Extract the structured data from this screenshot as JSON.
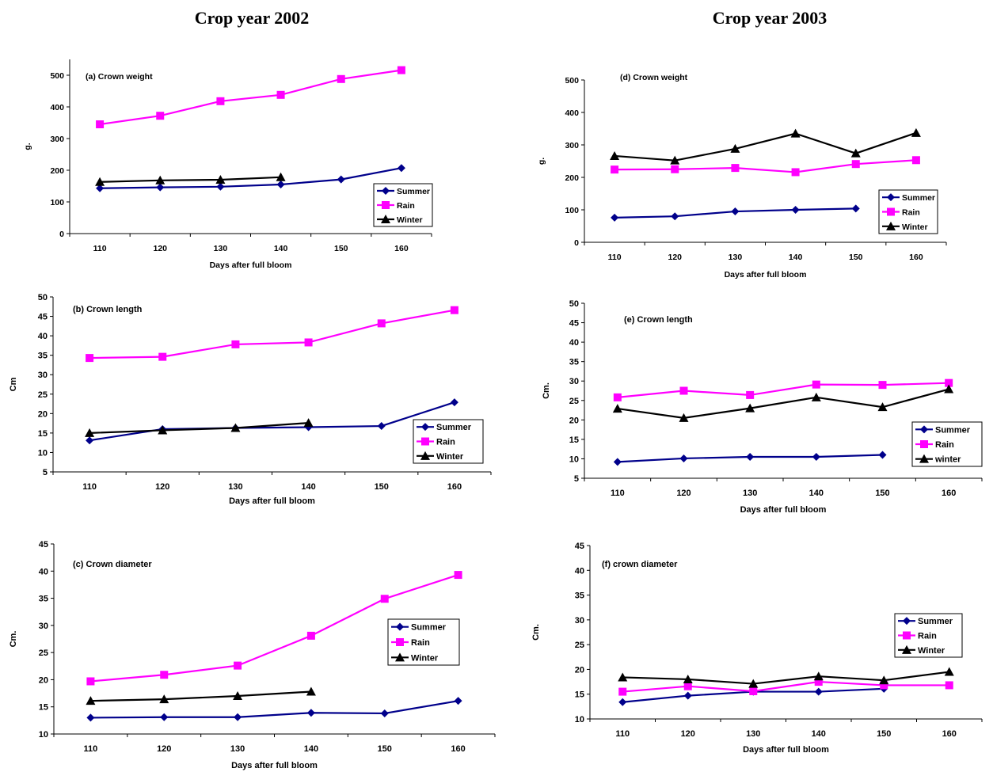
{
  "page": {
    "left_title": "Crop year 2002",
    "right_title": "Crop year 2003"
  },
  "chart_data": [
    {
      "type": "line",
      "panel": "a",
      "title": "(a) Crown weight",
      "xlabel": "Days after full bloom",
      "ylabel": "g.",
      "categories": [
        110,
        120,
        130,
        140,
        150,
        160
      ],
      "ylim": [
        0,
        550
      ],
      "yticks": [
        0,
        100,
        200,
        300,
        400,
        500
      ],
      "legend_position": "bottom-right",
      "series": [
        {
          "name": "Summer",
          "color": "#00008B",
          "marker": "diamond",
          "values": [
            143,
            146,
            148,
            155,
            171,
            207
          ]
        },
        {
          "name": "Rain",
          "color": "#FF00FF",
          "marker": "square",
          "values": [
            345,
            372,
            418,
            438,
            488,
            516
          ]
        },
        {
          "name": "Winter",
          "color": "#000000",
          "marker": "triangle",
          "values": [
            163,
            168,
            170,
            178,
            null,
            null
          ]
        }
      ]
    },
    {
      "type": "line",
      "panel": "b",
      "title": "(b) Crown length",
      "xlabel": "Days after full bloom",
      "ylabel": "Cm",
      "categories": [
        110,
        120,
        130,
        140,
        150,
        160
      ],
      "ylim": [
        5,
        50
      ],
      "yticks": [
        5,
        10,
        15,
        20,
        25,
        30,
        35,
        40,
        45,
        50
      ],
      "legend_position": "bottom-right",
      "series": [
        {
          "name": "Summer",
          "color": "#00008B",
          "marker": "diamond",
          "values": [
            13.1,
            16.0,
            16.3,
            16.5,
            16.8,
            22.9
          ]
        },
        {
          "name": "Rain",
          "color": "#FF00FF",
          "marker": "square",
          "values": [
            34.3,
            34.6,
            37.8,
            38.3,
            43.2,
            46.6
          ]
        },
        {
          "name": "Winter",
          "color": "#000000",
          "marker": "triangle",
          "values": [
            15.0,
            15.7,
            16.3,
            17.6,
            null,
            null
          ]
        }
      ]
    },
    {
      "type": "line",
      "panel": "c",
      "title": "(c) Crown diameter",
      "xlabel": "Days after full bloom",
      "ylabel": "Cm.",
      "categories": [
        110,
        120,
        130,
        140,
        150,
        160
      ],
      "ylim": [
        10,
        45
      ],
      "yticks": [
        10,
        15,
        20,
        25,
        30,
        35,
        40,
        45
      ],
      "legend_position": "right",
      "series": [
        {
          "name": "Summer",
          "color": "#00008B",
          "marker": "diamond",
          "values": [
            13.0,
            13.1,
            13.1,
            13.9,
            13.8,
            16.1
          ]
        },
        {
          "name": "Rain",
          "color": "#FF00FF",
          "marker": "square",
          "values": [
            19.7,
            20.9,
            22.6,
            28.1,
            34.9,
            39.3
          ]
        },
        {
          "name": "Winter",
          "color": "#000000",
          "marker": "triangle",
          "values": [
            16.1,
            16.4,
            17.0,
            17.8,
            null,
            null
          ]
        }
      ]
    },
    {
      "type": "line",
      "panel": "d",
      "title": "(d) Crown weight",
      "xlabel": "Days after full bloom",
      "ylabel": "g.",
      "categories": [
        110,
        120,
        130,
        140,
        150,
        160
      ],
      "ylim": [
        0,
        500
      ],
      "yticks": [
        0,
        100,
        200,
        300,
        400,
        500
      ],
      "legend_position": "bottom-right",
      "series": [
        {
          "name": "Summer",
          "color": "#00008B",
          "marker": "diamond",
          "values": [
            76,
            80,
            95,
            100,
            104,
            null
          ]
        },
        {
          "name": "Rain",
          "color": "#FF00FF",
          "marker": "square",
          "values": [
            224,
            225,
            229,
            216,
            241,
            253
          ]
        },
        {
          "name": "Winter",
          "color": "#000000",
          "marker": "triangle",
          "values": [
            266,
            252,
            288,
            335,
            274,
            337
          ]
        }
      ]
    },
    {
      "type": "line",
      "panel": "e",
      "title": "(e) Crown length",
      "xlabel": "Days after full bloom",
      "ylabel": "Cm.",
      "categories": [
        110,
        120,
        130,
        140,
        150,
        160
      ],
      "ylim": [
        5,
        50
      ],
      "yticks": [
        5,
        10,
        15,
        20,
        25,
        30,
        35,
        40,
        45,
        50
      ],
      "legend_position": "bottom-right",
      "series": [
        {
          "name": "Summer",
          "color": "#00008B",
          "marker": "diamond",
          "values": [
            9.2,
            10.1,
            10.5,
            10.5,
            11.0,
            null
          ]
        },
        {
          "name": "Rain",
          "color": "#FF00FF",
          "marker": "square",
          "values": [
            25.8,
            27.5,
            26.4,
            29.1,
            29.0,
            29.5
          ]
        },
        {
          "name": "winter",
          "color": "#000000",
          "marker": "triangle",
          "values": [
            22.9,
            20.5,
            23.0,
            25.8,
            23.3,
            27.9
          ]
        }
      ]
    },
    {
      "type": "line",
      "panel": "f",
      "title": "(f) crown diameter",
      "xlabel": "Days after full bloom",
      "ylabel": "Cm.",
      "categories": [
        110,
        120,
        130,
        140,
        150,
        160
      ],
      "ylim": [
        10,
        45
      ],
      "yticks": [
        10,
        15,
        20,
        25,
        30,
        35,
        40,
        45
      ],
      "legend_position": "right",
      "series": [
        {
          "name": "Summer",
          "color": "#00008B",
          "marker": "diamond",
          "values": [
            13.4,
            14.7,
            15.5,
            15.5,
            16.1,
            null
          ]
        },
        {
          "name": "Rain",
          "color": "#FF00FF",
          "marker": "square",
          "values": [
            15.5,
            16.6,
            15.6,
            17.5,
            16.8,
            16.8
          ]
        },
        {
          "name": "Winter",
          "color": "#000000",
          "marker": "triangle",
          "values": [
            18.4,
            18.0,
            17.1,
            18.6,
            17.8,
            19.5
          ]
        }
      ]
    }
  ]
}
